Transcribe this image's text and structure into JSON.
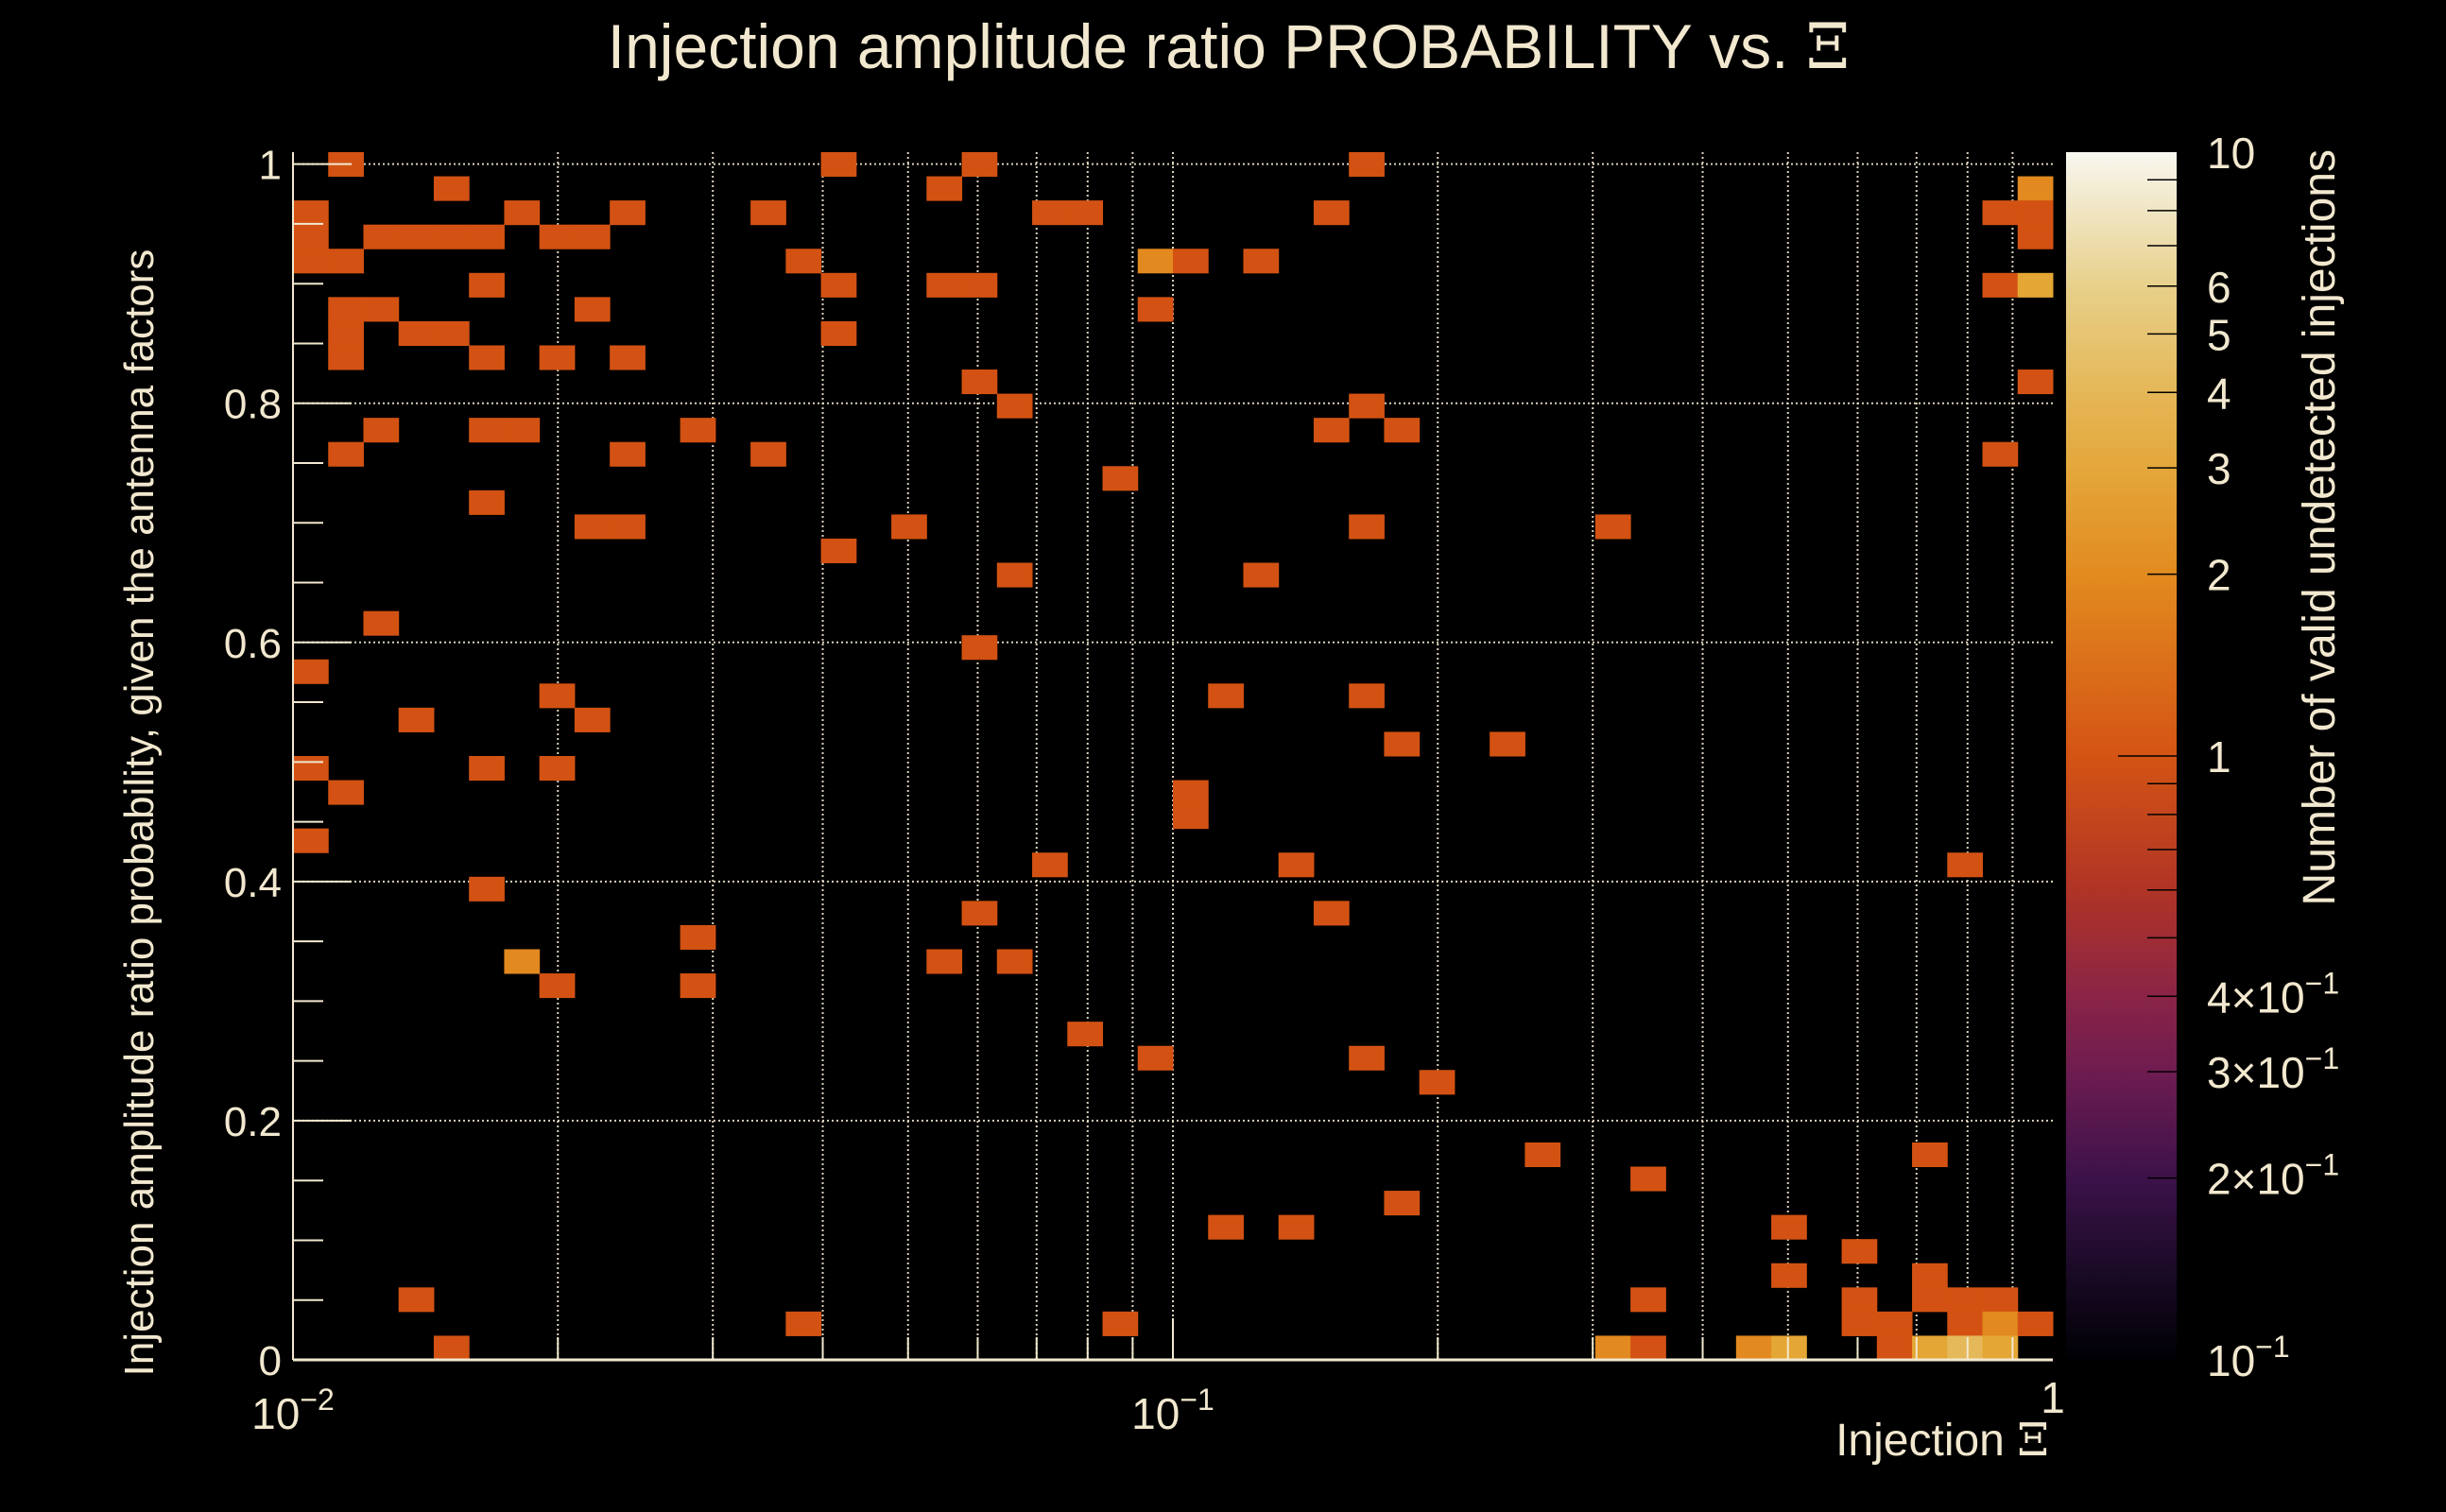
{
  "chart_data": {
    "type": "heatmap",
    "title": "Injection amplitude ratio PROBABILITY vs. ",
    "title_symbol": "Ξ",
    "xlabel": "Injection ",
    "xlabel_symbol": "Ξ",
    "ylabel": "Injection amplitude ratio probability, given the antenna factors",
    "zlabel": "Number of valid undetected injections",
    "x_axis": {
      "scale": "log",
      "range": [
        0.01,
        1
      ],
      "bins": 50,
      "ticks": [
        {
          "base": "10",
          "exp": "−2",
          "value": 0.01
        },
        {
          "base": "10",
          "exp": "−1",
          "value": 0.1
        },
        {
          "base": "1",
          "exp": "",
          "value": 1
        }
      ]
    },
    "y_axis": {
      "scale": "linear",
      "range": [
        0,
        1.01
      ],
      "bins": 50,
      "ticks": [
        {
          "label": "0",
          "value": 0
        },
        {
          "label": "0.2",
          "value": 0.2
        },
        {
          "label": "0.4",
          "value": 0.4
        },
        {
          "label": "0.6",
          "value": 0.6
        },
        {
          "label": "0.8",
          "value": 0.8
        },
        {
          "label": "1",
          "value": 1
        }
      ]
    },
    "z_axis": {
      "scale": "log",
      "range": [
        0.1,
        10
      ],
      "ticks": [
        {
          "label": "10",
          "exp": "",
          "value": 10
        },
        {
          "label": "6",
          "exp": "",
          "value": 6
        },
        {
          "label": "5",
          "exp": "",
          "value": 5
        },
        {
          "label": "4",
          "exp": "",
          "value": 4
        },
        {
          "label": "3",
          "exp": "",
          "value": 3
        },
        {
          "label": "2",
          "exp": "",
          "value": 2
        },
        {
          "label": "1",
          "exp": "",
          "value": 1
        },
        {
          "label": "4×10",
          "exp": "−1",
          "value": 0.4
        },
        {
          "label": "3×10",
          "exp": "−1",
          "value": 0.3
        },
        {
          "label": "2×10",
          "exp": "−1",
          "value": 0.2
        },
        {
          "label": "10",
          "exp": "−1",
          "value": 0.1
        }
      ]
    },
    "grid": true,
    "cells_format": "[x_bin_index, y_bin_index, count]",
    "cells": [
      [
        1,
        49,
        1
      ],
      [
        15,
        49,
        1
      ],
      [
        19,
        49,
        1
      ],
      [
        30,
        49,
        1
      ],
      [
        4,
        48,
        1
      ],
      [
        18,
        48,
        1
      ],
      [
        49,
        48,
        2
      ],
      [
        0,
        47,
        1
      ],
      [
        6,
        47,
        1
      ],
      [
        9,
        47,
        1
      ],
      [
        13,
        47,
        1
      ],
      [
        21,
        47,
        1
      ],
      [
        22,
        47,
        1
      ],
      [
        29,
        47,
        1
      ],
      [
        48,
        47,
        1
      ],
      [
        49,
        47,
        1
      ],
      [
        0,
        46,
        1
      ],
      [
        2,
        46,
        1
      ],
      [
        3,
        46,
        1
      ],
      [
        4,
        46,
        1
      ],
      [
        5,
        46,
        1
      ],
      [
        7,
        46,
        1
      ],
      [
        8,
        46,
        1
      ],
      [
        49,
        46,
        1
      ],
      [
        0,
        45,
        1
      ],
      [
        1,
        45,
        1
      ],
      [
        14,
        45,
        1
      ],
      [
        24,
        45,
        2
      ],
      [
        25,
        45,
        1
      ],
      [
        27,
        45,
        1
      ],
      [
        5,
        44,
        1
      ],
      [
        15,
        44,
        1
      ],
      [
        18,
        44,
        1
      ],
      [
        19,
        44,
        1
      ],
      [
        48,
        44,
        1
      ],
      [
        49,
        44,
        3
      ],
      [
        1,
        43,
        1
      ],
      [
        2,
        43,
        1
      ],
      [
        8,
        43,
        1
      ],
      [
        24,
        43,
        1
      ],
      [
        1,
        42,
        1
      ],
      [
        3,
        42,
        1
      ],
      [
        4,
        42,
        1
      ],
      [
        15,
        42,
        1
      ],
      [
        1,
        41,
        1
      ],
      [
        5,
        41,
        1
      ],
      [
        7,
        41,
        1
      ],
      [
        9,
        41,
        1
      ],
      [
        19,
        40,
        1
      ],
      [
        49,
        40,
        1
      ],
      [
        20,
        39,
        1
      ],
      [
        30,
        39,
        1
      ],
      [
        2,
        38,
        1
      ],
      [
        5,
        38,
        1
      ],
      [
        6,
        38,
        1
      ],
      [
        11,
        38,
        1
      ],
      [
        29,
        38,
        1
      ],
      [
        31,
        38,
        1
      ],
      [
        1,
        37,
        1
      ],
      [
        9,
        37,
        1
      ],
      [
        13,
        37,
        1
      ],
      [
        48,
        37,
        1
      ],
      [
        23,
        36,
        1
      ],
      [
        5,
        35,
        1
      ],
      [
        8,
        34,
        1
      ],
      [
        9,
        34,
        1
      ],
      [
        17,
        34,
        1
      ],
      [
        30,
        34,
        1
      ],
      [
        37,
        34,
        1
      ],
      [
        15,
        33,
        1
      ],
      [
        20,
        32,
        1
      ],
      [
        27,
        32,
        1
      ],
      [
        2,
        30,
        1
      ],
      [
        19,
        29,
        1
      ],
      [
        0,
        28,
        1
      ],
      [
        7,
        27,
        1
      ],
      [
        26,
        27,
        1
      ],
      [
        30,
        27,
        1
      ],
      [
        3,
        26,
        1
      ],
      [
        8,
        26,
        1
      ],
      [
        31,
        25,
        1
      ],
      [
        34,
        25,
        1
      ],
      [
        0,
        24,
        1
      ],
      [
        5,
        24,
        1
      ],
      [
        7,
        24,
        1
      ],
      [
        1,
        23,
        1
      ],
      [
        25,
        23,
        1
      ],
      [
        25,
        22,
        1
      ],
      [
        0,
        21,
        1
      ],
      [
        21,
        20,
        1
      ],
      [
        28,
        20,
        1
      ],
      [
        47,
        20,
        1
      ],
      [
        5,
        19,
        1
      ],
      [
        19,
        18,
        1
      ],
      [
        29,
        18,
        1
      ],
      [
        11,
        17,
        1
      ],
      [
        6,
        16,
        2
      ],
      [
        18,
        16,
        1
      ],
      [
        20,
        16,
        1
      ],
      [
        7,
        15,
        1
      ],
      [
        11,
        15,
        1
      ],
      [
        22,
        13,
        1
      ],
      [
        24,
        12,
        1
      ],
      [
        30,
        12,
        1
      ],
      [
        32,
        11,
        1
      ],
      [
        35,
        8,
        1
      ],
      [
        46,
        8,
        1
      ],
      [
        38,
        7,
        1
      ],
      [
        31,
        6,
        1
      ],
      [
        26,
        5,
        1
      ],
      [
        28,
        5,
        1
      ],
      [
        42,
        5,
        1
      ],
      [
        44,
        4,
        1
      ],
      [
        42,
        3,
        1
      ],
      [
        46,
        3,
        1
      ],
      [
        3,
        2,
        1
      ],
      [
        38,
        2,
        1
      ],
      [
        44,
        2,
        1
      ],
      [
        46,
        2,
        1
      ],
      [
        47,
        2,
        1
      ],
      [
        48,
        2,
        1
      ],
      [
        14,
        1,
        1
      ],
      [
        23,
        1,
        1
      ],
      [
        44,
        1,
        1
      ],
      [
        45,
        1,
        1
      ],
      [
        47,
        1,
        1
      ],
      [
        48,
        1,
        2
      ],
      [
        49,
        1,
        1
      ],
      [
        4,
        0,
        1
      ],
      [
        37,
        0,
        2
      ],
      [
        38,
        0,
        1
      ],
      [
        41,
        0,
        2
      ],
      [
        42,
        0,
        3
      ],
      [
        45,
        0,
        1
      ],
      [
        46,
        0,
        3
      ],
      [
        47,
        0,
        4
      ],
      [
        48,
        0,
        3
      ]
    ],
    "count_colors": {
      "1": "#d35213",
      "2": "#e2891f",
      "3": "#e4a634",
      "4": "#e5b95a"
    },
    "colorbar_stops": [
      {
        "value": 10,
        "color": "#f8f7f0"
      },
      {
        "value": 6,
        "color": "#e7d08a"
      },
      {
        "value": 4,
        "color": "#e5b757"
      },
      {
        "value": 3,
        "color": "#e4a73b"
      },
      {
        "value": 2,
        "color": "#e28b1f"
      },
      {
        "value": 1,
        "color": "#d45414"
      },
      {
        "value": 0.6,
        "color": "#b03426"
      },
      {
        "value": 0.4,
        "color": "#8a2446"
      },
      {
        "value": 0.3,
        "color": "#6e1c50"
      },
      {
        "value": 0.2,
        "color": "#3c124a"
      },
      {
        "value": 0.14,
        "color": "#1a0a26"
      },
      {
        "value": 0.1,
        "color": "#000004"
      }
    ],
    "text_color": "#f2e8cf"
  }
}
